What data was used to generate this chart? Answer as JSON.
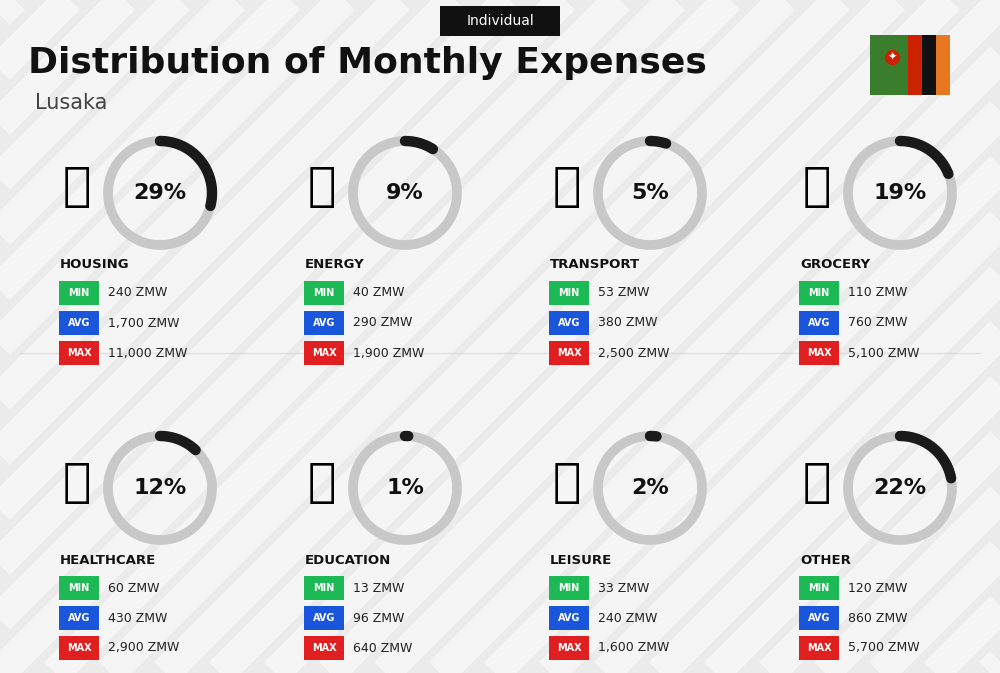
{
  "title": "Distribution of Monthly Expenses",
  "subtitle": "Individual",
  "city": "Lusaka",
  "bg_color": "#ebebeb",
  "categories": [
    {
      "name": "HOUSING",
      "pct": 29,
      "min_val": "240 ZMW",
      "avg_val": "1,700 ZMW",
      "max_val": "11,000 ZMW",
      "row": 0,
      "col": 0
    },
    {
      "name": "ENERGY",
      "pct": 9,
      "min_val": "40 ZMW",
      "avg_val": "290 ZMW",
      "max_val": "1,900 ZMW",
      "row": 0,
      "col": 1
    },
    {
      "name": "TRANSPORT",
      "pct": 5,
      "min_val": "53 ZMW",
      "avg_val": "380 ZMW",
      "max_val": "2,500 ZMW",
      "row": 0,
      "col": 2
    },
    {
      "name": "GROCERY",
      "pct": 19,
      "min_val": "110 ZMW",
      "avg_val": "760 ZMW",
      "max_val": "5,100 ZMW",
      "row": 0,
      "col": 3
    },
    {
      "name": "HEALTHCARE",
      "pct": 12,
      "min_val": "60 ZMW",
      "avg_val": "430 ZMW",
      "max_val": "2,900 ZMW",
      "row": 1,
      "col": 0
    },
    {
      "name": "EDUCATION",
      "pct": 1,
      "min_val": "13 ZMW",
      "avg_val": "96 ZMW",
      "max_val": "640 ZMW",
      "row": 1,
      "col": 1
    },
    {
      "name": "LEISURE",
      "pct": 2,
      "min_val": "33 ZMW",
      "avg_val": "240 ZMW",
      "max_val": "1,600 ZMW",
      "row": 1,
      "col": 2
    },
    {
      "name": "OTHER",
      "pct": 22,
      "min_val": "120 ZMW",
      "avg_val": "860 ZMW",
      "max_val": "5,700 ZMW",
      "row": 1,
      "col": 3
    }
  ],
  "min_color": "#1db954",
  "avg_color": "#1a56db",
  "max_color": "#e02020",
  "arc_bg_color": "#c8c8c8",
  "arc_fill_color": "#1a1a1a",
  "title_fontsize": 26,
  "subtitle_fontsize": 10,
  "city_fontsize": 15,
  "pct_fontsize": 16,
  "cat_fontsize": 9.5,
  "val_fontsize": 9,
  "badge_fontsize": 7
}
